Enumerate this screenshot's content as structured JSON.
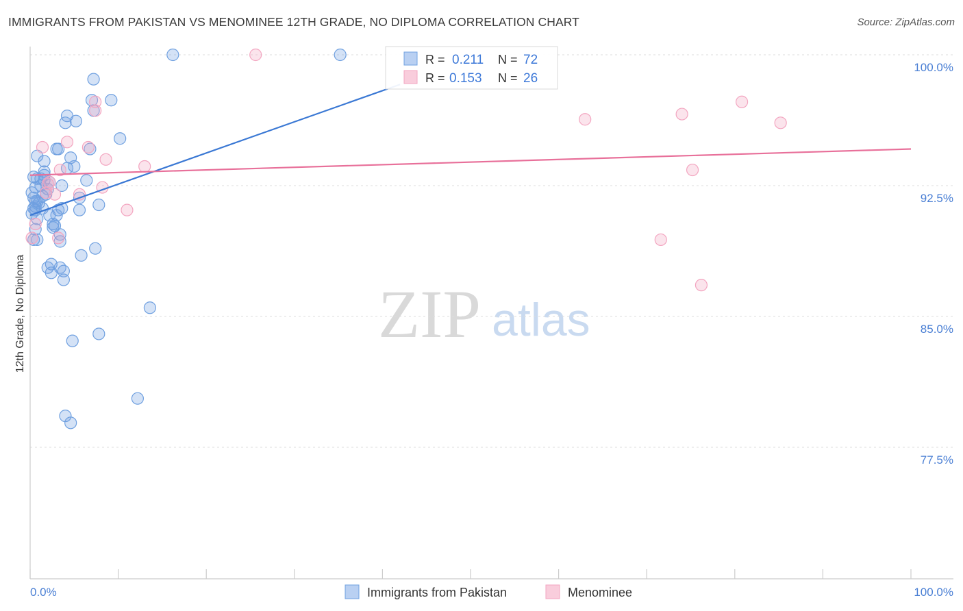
{
  "title": "IMMIGRANTS FROM PAKISTAN VS MENOMINEE 12TH GRADE, NO DIPLOMA CORRELATION CHART",
  "source": "Source: ZipAtlas.com",
  "watermark": {
    "zip": "ZIP",
    "atlas": "atlas"
  },
  "chart_data": {
    "type": "scatter",
    "ylabel": "12th Grade, No Diploma",
    "xlim": [
      0,
      100
    ],
    "ylim": [
      70,
      101.5
    ],
    "x_tick_labels": {
      "left": "0.0%",
      "right": "100.0%"
    },
    "y_ticks": [
      {
        "value": 100.0,
        "label": "100.0%"
      },
      {
        "value": 92.5,
        "label": "92.5%"
      },
      {
        "value": 85.0,
        "label": "85.0%"
      },
      {
        "value": 77.5,
        "label": "77.5%"
      }
    ],
    "legend": {
      "rows": [
        {
          "r_label": "R = ",
          "r_value": "0.211",
          "n_label": "N = ",
          "n_value": "72"
        },
        {
          "r_label": "R = ",
          "r_value": "0.153",
          "n_label": "N = ",
          "n_value": "26"
        }
      ]
    },
    "series": [
      {
        "name": "Immigrants from Pakistan",
        "color": "#6fa0e0",
        "line_color": "#3a78d4",
        "trend": {
          "x0": 0,
          "y0": 90.8,
          "x1": 42,
          "y1": 98.3
        },
        "points": [
          [
            16.2,
            100.0
          ],
          [
            35.2,
            100.0
          ],
          [
            7.2,
            98.6
          ],
          [
            7.0,
            97.4
          ],
          [
            9.2,
            97.4
          ],
          [
            7.2,
            96.8
          ],
          [
            4.2,
            96.5
          ],
          [
            5.2,
            96.2
          ],
          [
            4.0,
            96.1
          ],
          [
            10.2,
            95.2
          ],
          [
            3.2,
            94.6
          ],
          [
            3.0,
            94.6
          ],
          [
            6.8,
            94.6
          ],
          [
            0.8,
            94.2
          ],
          [
            4.6,
            94.1
          ],
          [
            1.6,
            93.9
          ],
          [
            5.0,
            93.6
          ],
          [
            4.2,
            93.5
          ],
          [
            1.6,
            93.3
          ],
          [
            1.6,
            93.1
          ],
          [
            0.4,
            93.0
          ],
          [
            0.8,
            92.9
          ],
          [
            1.2,
            92.9
          ],
          [
            1.6,
            92.8
          ],
          [
            6.4,
            92.8
          ],
          [
            2.2,
            92.7
          ],
          [
            1.2,
            92.5
          ],
          [
            3.6,
            92.5
          ],
          [
            0.6,
            92.4
          ],
          [
            0.2,
            92.1
          ],
          [
            1.8,
            92.0
          ],
          [
            0.4,
            91.8
          ],
          [
            5.6,
            91.8
          ],
          [
            0.8,
            91.6
          ],
          [
            1.0,
            91.5
          ],
          [
            0.6,
            91.3
          ],
          [
            7.8,
            91.4
          ],
          [
            0.4,
            91.2
          ],
          [
            0.6,
            91.1
          ],
          [
            1.4,
            91.2
          ],
          [
            3.6,
            91.2
          ],
          [
            3.2,
            91.1
          ],
          [
            5.6,
            91.1
          ],
          [
            0.2,
            90.9
          ],
          [
            2.2,
            90.8
          ],
          [
            3.0,
            90.8
          ],
          [
            0.8,
            90.6
          ],
          [
            2.6,
            90.3
          ],
          [
            2.8,
            90.2
          ],
          [
            2.6,
            90.1
          ],
          [
            0.6,
            90.0
          ],
          [
            3.4,
            89.7
          ],
          [
            0.4,
            89.4
          ],
          [
            0.8,
            89.4
          ],
          [
            3.4,
            89.3
          ],
          [
            7.4,
            88.9
          ],
          [
            5.8,
            88.5
          ],
          [
            2.4,
            88.0
          ],
          [
            2.0,
            87.8
          ],
          [
            3.4,
            87.8
          ],
          [
            3.8,
            87.6
          ],
          [
            2.4,
            87.5
          ],
          [
            3.8,
            87.1
          ],
          [
            13.6,
            85.5
          ],
          [
            7.8,
            84.0
          ],
          [
            4.8,
            83.6
          ],
          [
            12.2,
            80.3
          ],
          [
            4.0,
            79.3
          ],
          [
            4.6,
            78.9
          ],
          [
            0.6,
            91.6
          ],
          [
            1.4,
            91.9
          ],
          [
            2.0,
            92.3
          ]
        ]
      },
      {
        "name": "Menominee",
        "color": "#f3a5c0",
        "line_color": "#e8709a",
        "trend": {
          "x0": 0,
          "y0": 93.1,
          "x1": 100,
          "y1": 94.6
        },
        "points": [
          [
            25.6,
            100.0
          ],
          [
            7.4,
            97.3
          ],
          [
            7.4,
            96.8
          ],
          [
            63.0,
            96.3
          ],
          [
            74.0,
            96.6
          ],
          [
            80.8,
            97.3
          ],
          [
            85.2,
            96.1
          ],
          [
            4.2,
            95.0
          ],
          [
            1.4,
            94.7
          ],
          [
            6.6,
            94.7
          ],
          [
            8.6,
            94.0
          ],
          [
            13.0,
            93.6
          ],
          [
            3.4,
            93.4
          ],
          [
            75.2,
            93.4
          ],
          [
            2.2,
            92.7
          ],
          [
            8.2,
            92.4
          ],
          [
            1.8,
            92.1
          ],
          [
            2.8,
            92.0
          ],
          [
            5.6,
            92.0
          ],
          [
            11.0,
            91.1
          ],
          [
            0.6,
            90.3
          ],
          [
            0.2,
            89.5
          ],
          [
            3.2,
            89.5
          ],
          [
            71.6,
            89.4
          ],
          [
            76.2,
            86.8
          ],
          [
            2.0,
            92.6
          ]
        ]
      }
    ]
  }
}
